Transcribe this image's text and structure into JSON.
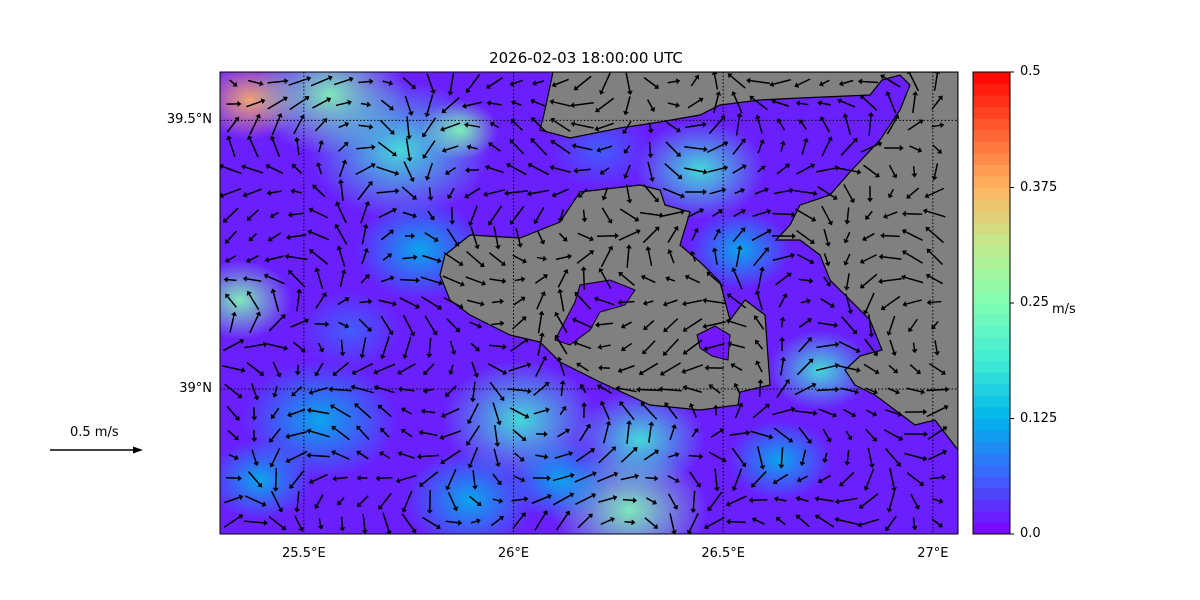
{
  "title": "2026-02-03 18:00:00 UTC",
  "chart_data": {
    "type": "quiver-map",
    "title": "2026-02-03 18:00:00 UTC",
    "x_ticks": [
      {
        "value": 25.5,
        "label": "25.5°E"
      },
      {
        "value": 26,
        "label": "26°E"
      },
      {
        "value": 26.5,
        "label": "26.5°E"
      },
      {
        "value": 27,
        "label": "27°E"
      }
    ],
    "y_ticks": [
      {
        "value": 39.5,
        "label": "39.5°N"
      },
      {
        "value": 39,
        "label": "39°N"
      }
    ],
    "xlim": [
      25.3,
      27.06
    ],
    "ylim": [
      38.73,
      39.59
    ],
    "grid": "dotted",
    "land_color": "#808080",
    "colormap": "rainbow",
    "colorbar": {
      "label": "m/s",
      "range": [
        0.0,
        0.5
      ],
      "ticks": [
        {
          "value": 0.0,
          "label": "0.0"
        },
        {
          "value": 0.125,
          "label": "0.125"
        },
        {
          "value": 0.25,
          "label": "0.25"
        },
        {
          "value": 0.375,
          "label": "0.375"
        },
        {
          "value": 0.5,
          "label": "0.5"
        }
      ],
      "colors": [
        "#7f00ff",
        "#3d63fa",
        "#00b4eb",
        "#40ecd4",
        "#80feb3",
        "#c0eb8d",
        "#ffb462",
        "#ff6031",
        "#ff0000"
      ]
    },
    "quiver_key": {
      "label": "0.5 m/s",
      "value": 0.5
    }
  }
}
